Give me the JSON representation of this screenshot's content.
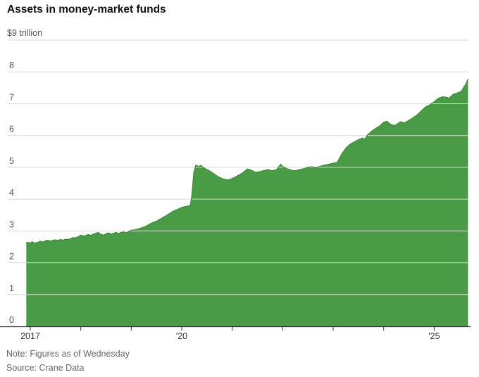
{
  "title": "Assets in money-market funds",
  "note": "Note: Figures as of Wednesday",
  "source": "Source: Crane Data",
  "chart_data": {
    "type": "area",
    "title": "Assets in money-market funds",
    "ylabel": "trillions of dollars",
    "xlabel": "",
    "unit_label": "$9 trillion",
    "ylim": [
      0,
      9
    ],
    "grid": true,
    "legend": "none",
    "y_ticks": [
      0,
      1,
      2,
      3,
      4,
      5,
      6,
      7,
      8
    ],
    "x_ticks": [
      {
        "year": 2017,
        "label": "2017"
      },
      {
        "year": 2018,
        "label": ""
      },
      {
        "year": 2019,
        "label": ""
      },
      {
        "year": 2020,
        "label": "'20"
      },
      {
        "year": 2021,
        "label": ""
      },
      {
        "year": 2022,
        "label": ""
      },
      {
        "year": 2023,
        "label": ""
      },
      {
        "year": 2024,
        "label": ""
      },
      {
        "year": 2025,
        "label": "'25"
      }
    ],
    "colors": {
      "fill": "#4a9b46",
      "line": "#3d8f3a",
      "grid": "#d9d9d9",
      "axis": "#2f2f2f"
    },
    "series": [
      {
        "name": "Assets in money-market funds ($ trillion)",
        "points": [
          [
            2016.92,
            2.65
          ],
          [
            2017.0,
            2.62
          ],
          [
            2017.04,
            2.66
          ],
          [
            2017.08,
            2.62
          ],
          [
            2017.15,
            2.64
          ],
          [
            2017.2,
            2.68
          ],
          [
            2017.25,
            2.65
          ],
          [
            2017.3,
            2.69
          ],
          [
            2017.35,
            2.71
          ],
          [
            2017.4,
            2.68
          ],
          [
            2017.45,
            2.71
          ],
          [
            2017.5,
            2.72
          ],
          [
            2017.55,
            2.7
          ],
          [
            2017.6,
            2.73
          ],
          [
            2017.65,
            2.71
          ],
          [
            2017.7,
            2.74
          ],
          [
            2017.75,
            2.73
          ],
          [
            2017.8,
            2.76
          ],
          [
            2017.85,
            2.79
          ],
          [
            2017.9,
            2.78
          ],
          [
            2017.95,
            2.82
          ],
          [
            2018.0,
            2.87
          ],
          [
            2018.05,
            2.84
          ],
          [
            2018.1,
            2.86
          ],
          [
            2018.15,
            2.89
          ],
          [
            2018.2,
            2.86
          ],
          [
            2018.25,
            2.9
          ],
          [
            2018.3,
            2.93
          ],
          [
            2018.35,
            2.95
          ],
          [
            2018.4,
            2.89
          ],
          [
            2018.45,
            2.87
          ],
          [
            2018.5,
            2.91
          ],
          [
            2018.55,
            2.94
          ],
          [
            2018.6,
            2.9
          ],
          [
            2018.65,
            2.93
          ],
          [
            2018.7,
            2.95
          ],
          [
            2018.75,
            2.92
          ],
          [
            2018.8,
            2.95
          ],
          [
            2018.85,
            2.97
          ],
          [
            2018.9,
            2.94
          ],
          [
            2018.95,
            2.98
          ],
          [
            2019.0,
            3.02
          ],
          [
            2019.08,
            3.04
          ],
          [
            2019.17,
            3.08
          ],
          [
            2019.25,
            3.12
          ],
          [
            2019.33,
            3.18
          ],
          [
            2019.42,
            3.26
          ],
          [
            2019.5,
            3.31
          ],
          [
            2019.58,
            3.38
          ],
          [
            2019.67,
            3.46
          ],
          [
            2019.75,
            3.54
          ],
          [
            2019.83,
            3.62
          ],
          [
            2019.92,
            3.68
          ],
          [
            2020.0,
            3.74
          ],
          [
            2020.08,
            3.77
          ],
          [
            2020.17,
            3.8
          ],
          [
            2020.2,
            4.1
          ],
          [
            2020.24,
            4.85
          ],
          [
            2020.28,
            5.07
          ],
          [
            2020.33,
            5.02
          ],
          [
            2020.38,
            5.06
          ],
          [
            2020.42,
            5.0
          ],
          [
            2020.5,
            4.93
          ],
          [
            2020.58,
            4.86
          ],
          [
            2020.67,
            4.76
          ],
          [
            2020.75,
            4.68
          ],
          [
            2020.83,
            4.63
          ],
          [
            2020.92,
            4.6
          ],
          [
            2021.0,
            4.65
          ],
          [
            2021.08,
            4.71
          ],
          [
            2021.17,
            4.79
          ],
          [
            2021.25,
            4.88
          ],
          [
            2021.3,
            4.95
          ],
          [
            2021.38,
            4.91
          ],
          [
            2021.46,
            4.84
          ],
          [
            2021.54,
            4.86
          ],
          [
            2021.63,
            4.9
          ],
          [
            2021.71,
            4.93
          ],
          [
            2021.79,
            4.89
          ],
          [
            2021.88,
            4.93
          ],
          [
            2021.96,
            5.1
          ],
          [
            2022.0,
            5.02
          ],
          [
            2022.08,
            4.96
          ],
          [
            2022.17,
            4.91
          ],
          [
            2022.25,
            4.89
          ],
          [
            2022.33,
            4.93
          ],
          [
            2022.42,
            4.96
          ],
          [
            2022.5,
            5.0
          ],
          [
            2022.58,
            5.02
          ],
          [
            2022.67,
            4.99
          ],
          [
            2022.75,
            5.04
          ],
          [
            2022.83,
            5.07
          ],
          [
            2022.92,
            5.1
          ],
          [
            2023.0,
            5.13
          ],
          [
            2023.08,
            5.16
          ],
          [
            2023.17,
            5.42
          ],
          [
            2023.25,
            5.6
          ],
          [
            2023.33,
            5.72
          ],
          [
            2023.42,
            5.8
          ],
          [
            2023.5,
            5.87
          ],
          [
            2023.58,
            5.92
          ],
          [
            2023.63,
            5.89
          ],
          [
            2023.67,
            6.0
          ],
          [
            2023.75,
            6.12
          ],
          [
            2023.83,
            6.21
          ],
          [
            2023.92,
            6.3
          ],
          [
            2024.0,
            6.42
          ],
          [
            2024.06,
            6.45
          ],
          [
            2024.13,
            6.36
          ],
          [
            2024.21,
            6.31
          ],
          [
            2024.29,
            6.38
          ],
          [
            2024.33,
            6.43
          ],
          [
            2024.42,
            6.4
          ],
          [
            2024.5,
            6.48
          ],
          [
            2024.58,
            6.56
          ],
          [
            2024.67,
            6.66
          ],
          [
            2024.75,
            6.78
          ],
          [
            2024.83,
            6.9
          ],
          [
            2024.92,
            6.97
          ],
          [
            2025.0,
            7.06
          ],
          [
            2025.08,
            7.17
          ],
          [
            2025.17,
            7.22
          ],
          [
            2025.25,
            7.2
          ],
          [
            2025.29,
            7.17
          ],
          [
            2025.38,
            7.3
          ],
          [
            2025.46,
            7.34
          ],
          [
            2025.5,
            7.36
          ],
          [
            2025.54,
            7.4
          ],
          [
            2025.58,
            7.5
          ],
          [
            2025.63,
            7.62
          ],
          [
            2025.67,
            7.78
          ]
        ]
      }
    ],
    "note": "Note: Figures as of Wednesday",
    "source": "Source: Crane Data"
  }
}
